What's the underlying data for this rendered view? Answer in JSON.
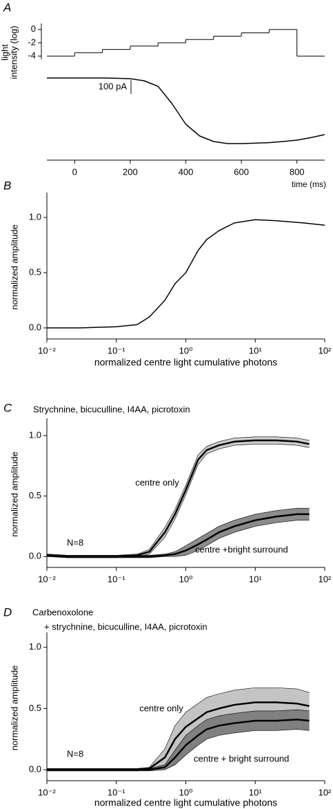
{
  "chart_data": [
    {
      "type": "line",
      "panel_label": "A",
      "ylabel": [
        "light",
        "intensity (log)"
      ],
      "xlabel": "time (ms)",
      "xlim": [
        -100,
        900
      ],
      "xticks": [
        0,
        200,
        400,
        600,
        800
      ],
      "ylim": [
        -4.5,
        0.5
      ],
      "yticks": [
        0,
        -2,
        -4
      ],
      "y2lim": [
        -510,
        65
      ],
      "scale_bar": {
        "value": 100,
        "label": "100 pA"
      },
      "series": [
        {
          "step": true,
          "color": "#000",
          "x": [
            -100,
            0,
            100,
            200,
            300,
            400,
            500,
            600,
            700,
            800,
            900
          ],
          "values": [
            -4,
            -3.5,
            -3,
            -2.5,
            -2,
            -1.5,
            -1,
            -0.5,
            0,
            -4,
            -4
          ]
        },
        {
          "axis": "y2",
          "color": "#000",
          "x": [
            -100,
            -50,
            0,
            50,
            100,
            150,
            200,
            250,
            300,
            350,
            400,
            450,
            500,
            550,
            600,
            650,
            700,
            750,
            800,
            850,
            900
          ],
          "values": [
            0,
            0,
            0,
            0,
            0,
            -2,
            -5,
            -20,
            -60,
            -185,
            -335,
            -420,
            -460,
            -475,
            -475,
            -472,
            -468,
            -460,
            -450,
            -432,
            -410
          ]
        }
      ]
    },
    {
      "type": "line",
      "panel_label": "B",
      "ylabel": "normalized amplitude",
      "xlabel": "normalized centre light cumulative photons",
      "xlog": true,
      "xlim": [
        0.01,
        100
      ],
      "xticks": [
        {
          "value": 0.01,
          "label": "10⁻²"
        },
        {
          "value": 0.1,
          "label": "10⁻¹"
        },
        {
          "value": 1,
          "label": "10⁰"
        },
        {
          "value": 10,
          "label": "10¹"
        },
        {
          "value": 100,
          "label": "10²"
        }
      ],
      "ylim": [
        -0.1,
        1.2
      ],
      "yticks": [
        {
          "value": 0,
          "label": "0.0"
        },
        0.5,
        {
          "value": 1,
          "label": "1.0"
        }
      ],
      "series": [
        {
          "color": "#000",
          "x": [
            0.01,
            0.03,
            0.1,
            0.2,
            0.3,
            0.5,
            0.7,
            1,
            1.5,
            2,
            3,
            5,
            10,
            20,
            50,
            100
          ],
          "values": [
            0,
            0,
            0.01,
            0.03,
            0.1,
            0.25,
            0.4,
            0.5,
            0.7,
            0.8,
            0.88,
            0.95,
            0.98,
            0.97,
            0.95,
            0.93
          ]
        }
      ]
    },
    {
      "type": "line",
      "panel_label": "C",
      "title": [
        "Strychnine, bicuculline, I4AA, picrotoxin"
      ],
      "ylabel": "normalized amplitude",
      "xlog": true,
      "xlim": [
        0.01,
        100
      ],
      "xticks": [
        {
          "value": 0.01,
          "label": "10⁻²"
        },
        {
          "value": 0.1,
          "label": "10⁻¹"
        },
        {
          "value": 1,
          "label": "10⁰"
        },
        {
          "value": 10,
          "label": "10¹"
        },
        {
          "value": 100,
          "label": "10²"
        }
      ],
      "ylim": [
        -0.09,
        1.12
      ],
      "yticks": [
        {
          "value": 0,
          "label": "0.0"
        },
        0.5,
        {
          "value": 1,
          "label": "1.0"
        }
      ],
      "annotations": [
        "centre only",
        "N=8",
        "centre +bright surround"
      ],
      "series": [
        {
          "color": "#000",
          "band_color": "#cccccc",
          "x": [
            0.01,
            0.02,
            0.05,
            0.1,
            0.2,
            0.3,
            0.5,
            0.7,
            1,
            1.5,
            2,
            3,
            5,
            10,
            20,
            40,
            60
          ],
          "values": [
            0.01,
            0,
            0,
            0,
            0.01,
            0.04,
            0.2,
            0.35,
            0.55,
            0.8,
            0.88,
            0.92,
            0.95,
            0.96,
            0.96,
            0.95,
            0.93
          ],
          "lower": [
            0,
            -0.01,
            -0.01,
            -0.01,
            0,
            0.02,
            0.16,
            0.31,
            0.51,
            0.76,
            0.85,
            0.89,
            0.92,
            0.93,
            0.93,
            0.92,
            0.9
          ],
          "upper": [
            0.02,
            0.01,
            0.01,
            0.01,
            0.02,
            0.06,
            0.24,
            0.39,
            0.59,
            0.84,
            0.91,
            0.95,
            0.98,
            0.99,
            0.99,
            0.98,
            0.96
          ]
        },
        {
          "color": "#000",
          "band_color": "#8c8c8c",
          "x": [
            0.01,
            0.02,
            0.05,
            0.1,
            0.2,
            0.3,
            0.5,
            0.7,
            1,
            1.5,
            2,
            3,
            5,
            10,
            20,
            40,
            60
          ],
          "values": [
            0.01,
            0,
            0,
            0,
            0,
            0,
            0.01,
            0.02,
            0.05,
            0.1,
            0.14,
            0.2,
            0.25,
            0.3,
            0.33,
            0.35,
            0.35
          ],
          "lower": [
            0,
            -0.01,
            -0.01,
            -0.01,
            -0.01,
            -0.01,
            0,
            0,
            0.01,
            0.05,
            0.09,
            0.15,
            0.2,
            0.25,
            0.28,
            0.3,
            0.3
          ],
          "upper": [
            0.02,
            0.01,
            0.01,
            0.01,
            0.01,
            0.01,
            0.02,
            0.04,
            0.09,
            0.15,
            0.19,
            0.25,
            0.3,
            0.35,
            0.38,
            0.4,
            0.4
          ]
        }
      ]
    },
    {
      "type": "line",
      "panel_label": "D",
      "title": [
        "Carbenoxolone",
        "+ strychnine, bicuculline, I4AA, picrotoxin"
      ],
      "ylabel": "normalized amplitude",
      "xlabel": "normalized centre light cumulative photons",
      "xlog": true,
      "xlim": [
        0.01,
        100
      ],
      "xticks": [
        {
          "value": 0.01,
          "label": "10⁻²"
        },
        {
          "value": 0.1,
          "label": "10⁻¹"
        },
        {
          "value": 1,
          "label": "10⁰"
        },
        {
          "value": 10,
          "label": "10¹"
        },
        {
          "value": 100,
          "label": "10²"
        }
      ],
      "ylim": [
        -0.09,
        1.1
      ],
      "yticks": [
        {
          "value": 0,
          "label": "0.0"
        },
        0.5,
        {
          "value": 1,
          "label": "1.0"
        }
      ],
      "annotations": [
        "centre only",
        "N=8",
        "centre + bright surround"
      ],
      "series": [
        {
          "color": "#000",
          "band_color": "#c4c4c4",
          "x": [
            0.01,
            0.02,
            0.05,
            0.1,
            0.2,
            0.3,
            0.5,
            0.7,
            1,
            1.5,
            2,
            3,
            5,
            10,
            20,
            40,
            60
          ],
          "values": [
            0,
            0,
            0,
            0,
            0,
            0.01,
            0.1,
            0.25,
            0.35,
            0.42,
            0.47,
            0.5,
            0.53,
            0.55,
            0.55,
            0.54,
            0.52
          ],
          "lower": [
            -0.01,
            -0.01,
            -0.01,
            -0.01,
            -0.01,
            0,
            0.03,
            0.14,
            0.23,
            0.3,
            0.35,
            0.38,
            0.41,
            0.43,
            0.43,
            0.42,
            0.41
          ],
          "upper": [
            0.01,
            0.01,
            0.01,
            0.01,
            0.01,
            0.02,
            0.17,
            0.36,
            0.47,
            0.54,
            0.59,
            0.62,
            0.65,
            0.67,
            0.67,
            0.66,
            0.63
          ]
        },
        {
          "color": "#000",
          "band_color": "#808080",
          "x": [
            0.01,
            0.02,
            0.05,
            0.1,
            0.2,
            0.3,
            0.5,
            0.7,
            1,
            1.5,
            2,
            3,
            5,
            10,
            20,
            40,
            60
          ],
          "values": [
            0,
            0,
            0,
            0,
            0,
            0,
            0.02,
            0.1,
            0.2,
            0.28,
            0.33,
            0.36,
            0.38,
            0.4,
            0.4,
            0.41,
            0.4
          ],
          "lower": [
            -0.01,
            -0.01,
            -0.01,
            -0.01,
            -0.01,
            -0.01,
            0,
            0.04,
            0.12,
            0.2,
            0.25,
            0.28,
            0.3,
            0.32,
            0.32,
            0.33,
            0.32
          ],
          "upper": [
            0.01,
            0.01,
            0.01,
            0.01,
            0.01,
            0.01,
            0.04,
            0.16,
            0.28,
            0.36,
            0.41,
            0.44,
            0.46,
            0.48,
            0.48,
            0.49,
            0.48
          ]
        }
      ]
    }
  ]
}
